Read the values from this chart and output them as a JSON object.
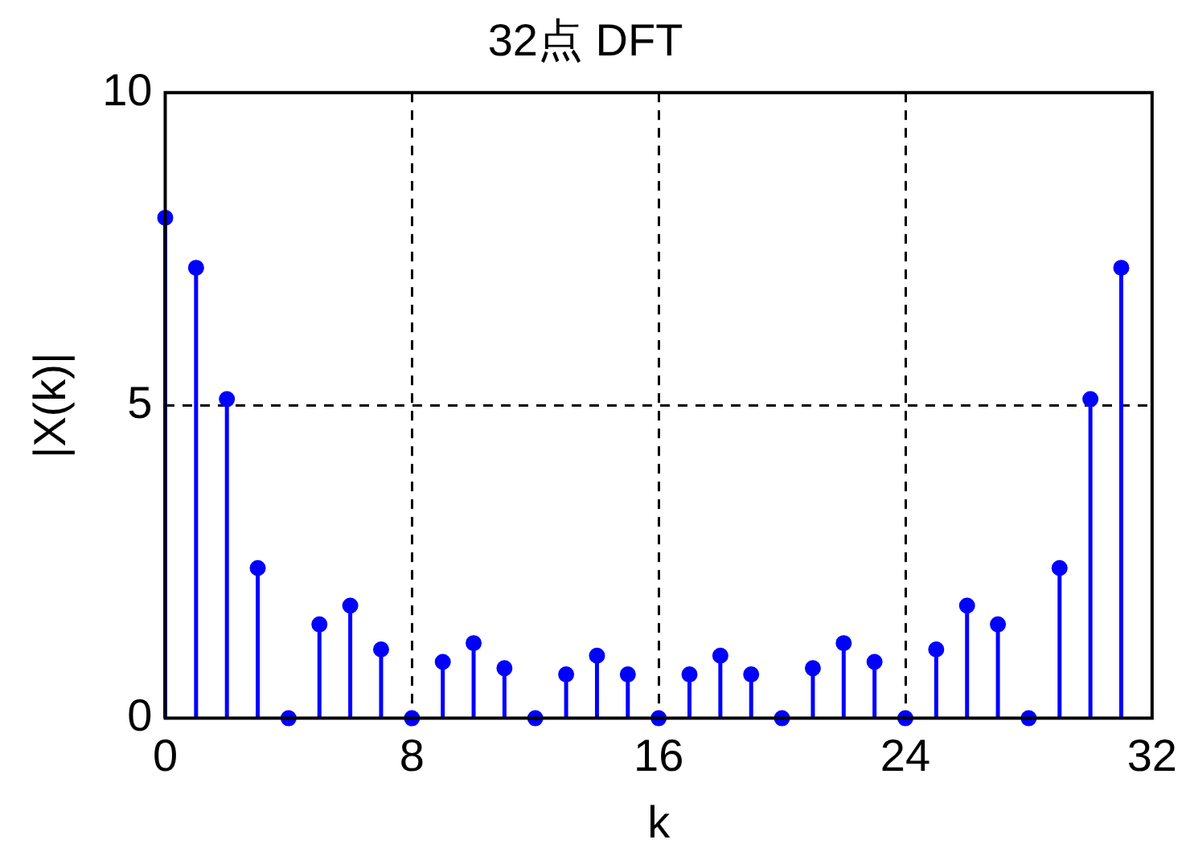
{
  "chart_data": {
    "type": "lollipop",
    "title": "32点 DFT",
    "xlabel": "k",
    "ylabel": "|X(k)|",
    "x": [
      0,
      1,
      2,
      3,
      4,
      5,
      6,
      7,
      8,
      9,
      10,
      11,
      12,
      13,
      14,
      15,
      16,
      17,
      18,
      19,
      20,
      21,
      22,
      23,
      24,
      25,
      26,
      27,
      28,
      29,
      30,
      31
    ],
    "values": [
      8,
      7.2,
      5.1,
      2.4,
      0,
      1.5,
      1.8,
      1.1,
      0,
      0.9,
      1.2,
      0.8,
      0,
      0.7,
      1.0,
      0.7,
      0,
      0.7,
      1.0,
      0.7,
      0,
      0.8,
      1.2,
      0.9,
      0,
      1.1,
      1.8,
      1.5,
      0,
      2.4,
      5.1,
      7.2
    ],
    "color": "#0000ff",
    "marker": "circle",
    "xlim": [
      0,
      32
    ],
    "xticks": [
      0,
      8,
      16,
      24,
      32
    ],
    "ylim": [
      0,
      10
    ],
    "yticks": [
      0,
      5,
      10
    ],
    "grid": true,
    "legend": false
  }
}
